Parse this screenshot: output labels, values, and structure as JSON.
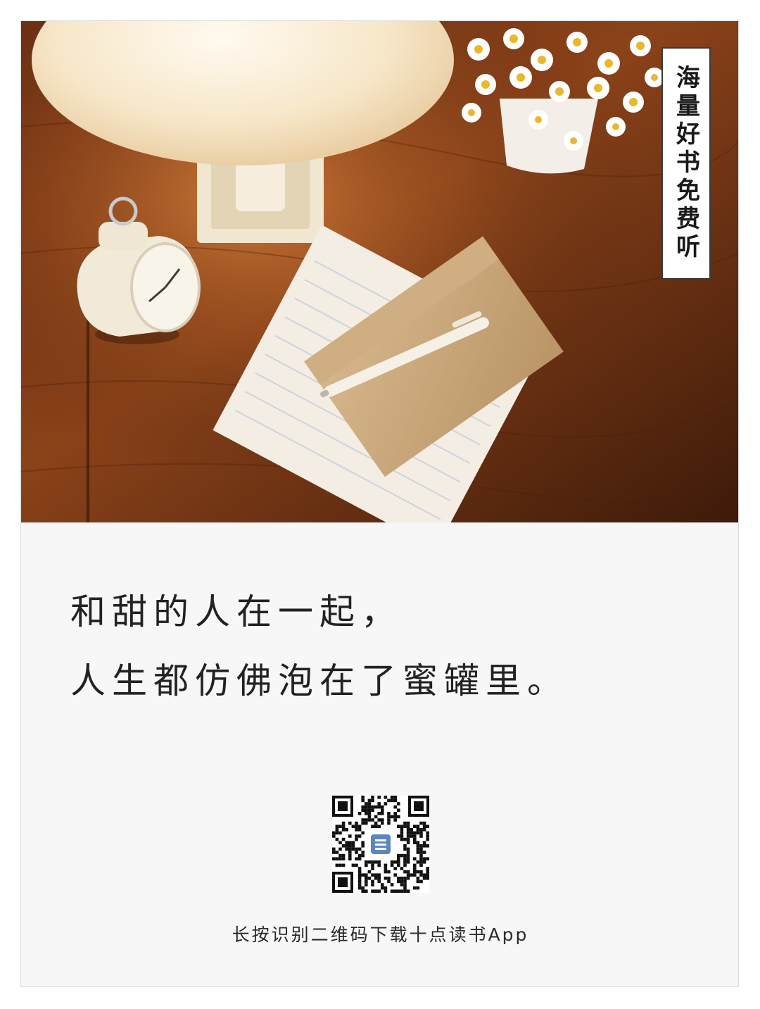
{
  "badge": {
    "text": "海量好书免费听"
  },
  "quote": {
    "lines": [
      "和甜的人在一起，",
      "人生都仿佛泡在了蜜罐里。"
    ]
  },
  "qr": {
    "logo_icon": "book-app-logo-icon"
  },
  "cta": {
    "text": "长按识别二维码下载十点读书App"
  },
  "photo": {
    "subject": "desk-still-life-photo",
    "colors": {
      "wood_dark": "#3e1a0a",
      "wood_mid": "#7a3a17",
      "wood_light": "#b0622c",
      "lamp_glow": "#fff6e4",
      "envelope": "#c8a77c",
      "paper": "#f3ede4"
    }
  }
}
